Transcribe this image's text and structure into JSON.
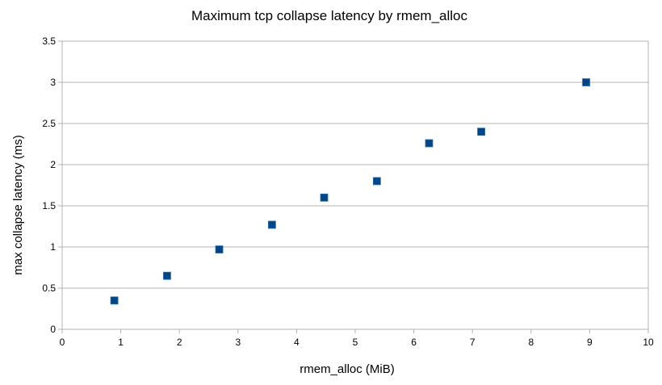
{
  "chart_data": {
    "type": "scatter",
    "title": "Maximum tcp collapse latency by rmem_alloc",
    "xlabel": "rmem_alloc (MiB)",
    "ylabel": "max collapse latency (ms)",
    "xlim": [
      0,
      10
    ],
    "ylim": [
      0,
      3.5
    ],
    "xticks": [
      "0",
      "1",
      "2",
      "3",
      "4",
      "5",
      "6",
      "7",
      "8",
      "9",
      "10"
    ],
    "yticks": [
      "0",
      "0.5",
      "1",
      "1.5",
      "2",
      "2.5",
      "3",
      "3.5"
    ],
    "grid": true,
    "legend": "none",
    "marker_color": "#004586",
    "series": [
      {
        "x": [
          0.89,
          1.79,
          2.68,
          3.58,
          4.47,
          5.37,
          6.26,
          7.15,
          8.94
        ],
        "y": [
          0.35,
          0.65,
          0.97,
          1.27,
          1.6,
          1.8,
          2.26,
          2.4,
          3.0
        ]
      }
    ]
  }
}
